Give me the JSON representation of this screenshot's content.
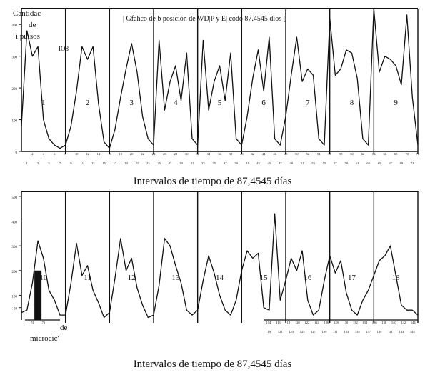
{
  "header": {
    "title": "| Gfãhco de b posición de WD|P y E| codo 87.4545 dios [",
    "ylabel_lines": [
      "Cantidac",
      "de",
      "i puisos"
    ],
    "tag": "IO8"
  },
  "footer": {
    "legend_lines": [
      "de",
      "microcic'"
    ]
  },
  "chart_data": [
    {
      "type": "line",
      "title": "| Gfãhco de b posición de WD|P y E| codo 87.4545 dios [",
      "xlabel": "Intervalos de tiempo de 87,4545 días",
      "ylabel": "Cantidac de i puisos",
      "ylim": [
        0,
        400
      ],
      "yticks": [
        0,
        100,
        200,
        300,
        400
      ],
      "xlim": [
        0,
        72
      ],
      "x_ticks_top": [
        "2",
        "4",
        "6",
        "8",
        "10",
        "12",
        "14",
        "16",
        "18",
        "20",
        "22",
        "24",
        "26",
        "28",
        "30",
        "32",
        "34",
        "36",
        "38",
        "40",
        "42",
        "44",
        "46",
        "48",
        "50",
        "52",
        "54",
        "56",
        "58",
        "60",
        "62",
        "64",
        "66",
        "68",
        "70",
        "72"
      ],
      "x_ticks_bottom": [
        "1",
        "3",
        "5",
        "7",
        "9",
        "11",
        "13",
        "15",
        "17",
        "19",
        "21",
        "23",
        "25",
        "27",
        "29",
        "31",
        "33",
        "35",
        "37",
        "39",
        "41",
        "43",
        "45",
        "47",
        "49",
        "51",
        "53",
        "55",
        "57",
        "59",
        "61",
        "63",
        "65",
        "67",
        "69",
        "71"
      ],
      "cycle_boundaries": [
        8,
        16,
        24,
        32,
        40,
        48,
        56,
        64,
        72
      ],
      "cycle_labels": [
        "1",
        "2",
        "3",
        "4",
        "5",
        "6",
        "7",
        "8",
        "9"
      ],
      "series": [
        {
          "x": [
            0,
            1,
            2,
            3,
            4,
            5,
            6,
            7,
            8,
            9,
            10,
            11,
            12,
            13,
            14,
            15,
            16,
            17,
            18,
            19,
            20,
            21,
            22,
            23,
            24,
            25,
            26,
            27,
            28,
            29,
            30,
            31,
            32,
            33,
            34,
            35,
            36,
            37,
            38,
            39,
            40,
            41,
            42,
            43,
            44,
            45,
            46,
            47,
            48,
            49,
            50,
            51,
            52,
            53,
            54,
            55,
            56,
            57,
            58,
            59,
            60,
            61,
            62,
            63,
            64,
            65,
            66,
            67,
            68,
            69,
            70,
            71,
            72
          ],
          "y": [
            80,
            380,
            300,
            330,
            100,
            40,
            20,
            10,
            20,
            80,
            190,
            330,
            290,
            330,
            150,
            30,
            10,
            70,
            170,
            260,
            340,
            250,
            110,
            40,
            20,
            350,
            130,
            220,
            270,
            160,
            310,
            40,
            20,
            350,
            130,
            220,
            270,
            160,
            310,
            40,
            20,
            110,
            230,
            320,
            190,
            360,
            40,
            20,
            110,
            240,
            360,
            220,
            260,
            240,
            40,
            20,
            420,
            240,
            260,
            320,
            310,
            230,
            40,
            20,
            450,
            250,
            300,
            290,
            270,
            210,
            430,
            170,
            20
          ]
        }
      ]
    },
    {
      "type": "line",
      "title": "",
      "xlabel": "Intervalos de tiempo de 87,4545 días",
      "ylabel": "",
      "ylim": [
        0,
        500
      ],
      "yticks": [
        50,
        100,
        200,
        300,
        400,
        500
      ],
      "xlim": [
        0,
        72
      ],
      "x_ticks_left": [
        "74",
        "76"
      ],
      "x_ticks_right_top": [
        "114",
        "116",
        "118",
        "120",
        "122",
        "124",
        "126",
        "128",
        "130",
        "132",
        "134",
        "136",
        "138",
        "140",
        "142",
        "144"
      ],
      "x_ticks_right_bottom": [
        "19",
        "121",
        "123",
        "125",
        "127",
        "129",
        "131",
        "133",
        "135",
        "137",
        "139",
        "141",
        "143",
        "145"
      ],
      "cycle_boundaries": [
        8,
        16,
        24,
        32,
        40,
        48,
        56,
        64,
        72
      ],
      "cycle_labels": [
        "10",
        "11",
        "12",
        "13",
        "14",
        "15",
        "16",
        "17",
        "18"
      ],
      "microcycle_bar": {
        "x": 3,
        "value": 200
      },
      "series": [
        {
          "x": [
            0,
            1,
            2,
            3,
            4,
            5,
            6,
            7,
            8,
            9,
            10,
            11,
            12,
            13,
            14,
            15,
            16,
            17,
            18,
            19,
            20,
            21,
            22,
            23,
            24,
            25,
            26,
            27,
            28,
            29,
            30,
            31,
            32,
            33,
            34,
            35,
            36,
            37,
            38,
            39,
            40,
            41,
            42,
            43,
            44,
            45,
            46,
            47,
            48,
            49,
            50,
            51,
            52,
            53,
            54,
            55,
            56,
            57,
            58,
            59,
            60,
            61,
            62,
            63,
            64,
            65,
            66,
            67,
            68,
            69,
            70,
            71,
            72
          ],
          "y": [
            30,
            40,
            150,
            320,
            250,
            120,
            80,
            20,
            20,
            150,
            310,
            180,
            220,
            120,
            70,
            10,
            30,
            170,
            330,
            200,
            250,
            130,
            60,
            10,
            20,
            140,
            330,
            300,
            220,
            150,
            40,
            20,
            40,
            160,
            260,
            190,
            100,
            40,
            20,
            80,
            200,
            280,
            250,
            270,
            50,
            40,
            430,
            80,
            160,
            250,
            200,
            280,
            80,
            20,
            40,
            160,
            260,
            190,
            240,
            110,
            40,
            20,
            80,
            120,
            180,
            240,
            260,
            300,
            180,
            60,
            40,
            40,
            20
          ]
        }
      ]
    }
  ]
}
